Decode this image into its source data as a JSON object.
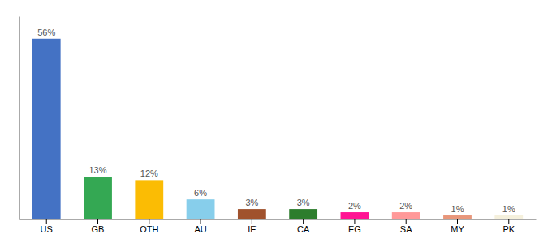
{
  "chart_data": {
    "type": "bar",
    "categories": [
      "US",
      "GB",
      "OTH",
      "AU",
      "IE",
      "CA",
      "EG",
      "SA",
      "MY",
      "PK"
    ],
    "values": [
      56,
      13,
      12,
      6,
      3,
      3,
      2,
      2,
      1,
      1
    ],
    "value_labels": [
      "56%",
      "13%",
      "12%",
      "6%",
      "3%",
      "3%",
      "2%",
      "2%",
      "1%",
      "1%"
    ],
    "colors": [
      "#4472C4",
      "#34A853",
      "#FBBC04",
      "#87CEEB",
      "#A0522D",
      "#2D7D2D",
      "#FF1493",
      "#FF9999",
      "#E8967A",
      "#F5F0DC"
    ],
    "ylim": [
      0,
      63
    ],
    "data_labels": true,
    "tick_labels": "x"
  }
}
